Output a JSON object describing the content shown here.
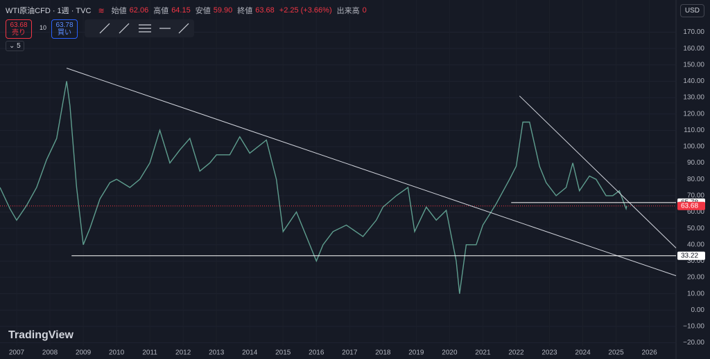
{
  "header": {
    "symbol": "WTI原油CFD · 1週 · TVC",
    "ohlc": [
      [
        "始値",
        "62.06"
      ],
      [
        "高値",
        "64.15"
      ],
      [
        "安値",
        "59.90"
      ],
      [
        "終値",
        "63.68"
      ]
    ],
    "change": "+2.25 (+3.66%)",
    "volume_label": "出来高",
    "volume": "0",
    "sell_price": "63.68",
    "sell_label": "売り",
    "quantity": "10",
    "buy_price": "63.78",
    "buy_label": "買い",
    "indicator_count": "5",
    "currency": "USD",
    "logo": "TradingView"
  },
  "chart_data": {
    "type": "line",
    "color": "#5f9e8f",
    "grid": true,
    "x": [
      2006.5,
      2006.8,
      2007.0,
      2007.3,
      2007.6,
      2007.9,
      2008.2,
      2008.5,
      2008.6,
      2008.8,
      2009.0,
      2009.2,
      2009.5,
      2009.8,
      2010.0,
      2010.4,
      2010.7,
      2011.0,
      2011.3,
      2011.6,
      2011.9,
      2012.2,
      2012.5,
      2012.8,
      2013.0,
      2013.4,
      2013.7,
      2014.0,
      2014.5,
      2014.8,
      2015.0,
      2015.4,
      2015.7,
      2016.0,
      2016.2,
      2016.5,
      2016.9,
      2017.4,
      2017.8,
      2018.0,
      2018.4,
      2018.75,
      2018.95,
      2019.3,
      2019.6,
      2019.9,
      2020.2,
      2020.3,
      2020.5,
      2020.8,
      2021.0,
      2021.4,
      2021.8,
      2022.0,
      2022.2,
      2022.4,
      2022.7,
      2022.9,
      2023.2,
      2023.5,
      2023.7,
      2023.9,
      2024.2,
      2024.4,
      2024.7,
      2024.9,
      2025.1,
      2025.3,
      2025.32
    ],
    "values": [
      75,
      62,
      55,
      64,
      75,
      92,
      105,
      140,
      125,
      75,
      40,
      50,
      68,
      78,
      80,
      75,
      80,
      90,
      110,
      90,
      98,
      105,
      85,
      90,
      95,
      95,
      106,
      96,
      104,
      80,
      48,
      60,
      45,
      30,
      40,
      48,
      52,
      45,
      55,
      63,
      70,
      75,
      48,
      63,
      55,
      61,
      30,
      10,
      40,
      40,
      52,
      65,
      80,
      88,
      115,
      115,
      88,
      78,
      70,
      75,
      90,
      73,
      82,
      80,
      70,
      70,
      73,
      62,
      63.68
    ],
    "xlim": [
      2006.5,
      2026.8
    ],
    "ylim": [
      -24,
      188
    ],
    "xticks": [
      2007,
      2008,
      2009,
      2010,
      2011,
      2012,
      2013,
      2014,
      2015,
      2016,
      2017,
      2018,
      2019,
      2020,
      2021,
      2022,
      2023,
      2024,
      2025,
      2026
    ],
    "yticks": [
      {
        "value": -20,
        "label": "−20.00"
      },
      {
        "value": -10,
        "label": "−10.00"
      },
      {
        "value": 0,
        "label": "0.00"
      },
      {
        "value": 10,
        "label": "10.00"
      },
      {
        "value": 20,
        "label": "20.00"
      },
      {
        "value": 30,
        "label": "30.00"
      },
      {
        "value": 40,
        "label": "40.00"
      },
      {
        "value": 50,
        "label": "50.00"
      },
      {
        "value": 60,
        "label": "60.00"
      },
      {
        "value": 70,
        "label": "70.00"
      },
      {
        "value": 80,
        "label": "80.00"
      },
      {
        "value": 90,
        "label": "90.00"
      },
      {
        "value": 100,
        "label": "100.00"
      },
      {
        "value": 110,
        "label": "110.00"
      },
      {
        "value": 120,
        "label": "120.00"
      },
      {
        "value": 130,
        "label": "130.00"
      },
      {
        "value": 140,
        "label": "140.00"
      },
      {
        "value": 150,
        "label": "150.00"
      },
      {
        "value": 160,
        "label": "160.00"
      },
      {
        "value": 170,
        "label": "170.00"
      }
    ],
    "trend_lines": [
      {
        "x": [
          2008.5,
          2026.8
        ],
        "y": [
          148,
          21
        ]
      },
      {
        "x": [
          2022.1,
          2026.8
        ],
        "y": [
          131,
          38
        ]
      }
    ],
    "levels": [
      {
        "value": 65.78,
        "x_start": 2021.85,
        "color": "#ffffff"
      },
      {
        "value": 33.22,
        "x_start": 2008.65,
        "color": "#ffffff"
      }
    ],
    "last_price": 63.68,
    "last_price_color": "#f23645"
  }
}
